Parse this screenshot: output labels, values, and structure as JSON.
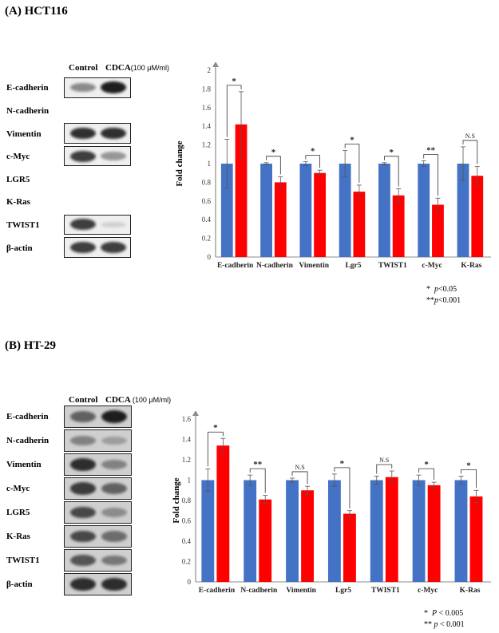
{
  "colors": {
    "control": "#4472C4",
    "cdca": "#FF0000",
    "axis": "#8C8C8C"
  },
  "panelA": {
    "title": "(A)  HCT116",
    "blot": {
      "control_label": "Control",
      "cdca_label": "CDCA",
      "concentration": "(100 μM/ml)",
      "rows": [
        {
          "label": "E-cadherin",
          "has_image": true,
          "ctrl": 0.55,
          "cdca": 0.95
        },
        {
          "label": "N-cadherin",
          "has_image": false
        },
        {
          "label": "Vimentin",
          "has_image": true,
          "ctrl": 0.9,
          "cdca": 0.9
        },
        {
          "label": "c-Myc",
          "has_image": true,
          "ctrl": 0.85,
          "cdca": 0.5
        },
        {
          "label": "LGR5",
          "has_image": false
        },
        {
          "label": "K-Ras",
          "has_image": false
        },
        {
          "label": "TWIST1",
          "has_image": true,
          "ctrl": 0.85,
          "cdca": 0.15
        },
        {
          "label": "β-actin",
          "has_image": true,
          "ctrl": 0.85,
          "cdca": 0.85
        }
      ]
    },
    "chart_data": {
      "type": "bar",
      "ylabel": "Fold change",
      "ylim": [
        0,
        2
      ],
      "yticks": [
        "0",
        "0.2",
        "0.4",
        "0.6",
        "0.8",
        "1",
        "1.2",
        "1.4",
        "1.6",
        "1.8",
        "2"
      ],
      "categories": [
        "E-cadherin",
        "N-cadherin",
        "Vimentin",
        "Lgr5",
        "TWIST1",
        "c-Myc",
        "K-Ras"
      ],
      "series": [
        {
          "name": "Control",
          "values": [
            1,
            1,
            1,
            1,
            1,
            1,
            1
          ],
          "errors": [
            0.26,
            0.01,
            0.02,
            0.14,
            0.01,
            0.03,
            0.18
          ]
        },
        {
          "name": "CDCA",
          "values": [
            1.42,
            0.8,
            0.9,
            0.7,
            0.66,
            0.56,
            0.87
          ],
          "errors": [
            0.35,
            0.06,
            0.03,
            0.07,
            0.07,
            0.07,
            0.1
          ]
        }
      ],
      "significance": [
        "*",
        "*",
        "*",
        "*",
        "*",
        "**",
        "N.S"
      ],
      "legend_position": "bottom",
      "notes": [
        {
          "stars": "*",
          "p": "p",
          "text": "<0.05"
        },
        {
          "stars": "**",
          "p": "p",
          "text": "<0.001"
        }
      ]
    }
  },
  "panelB": {
    "title": "(B)  HT-29",
    "blot": {
      "control_label": "Control",
      "cdca_label": "CDCA",
      "concentration": "(100 μM/ml)",
      "rows": [
        {
          "label": "E-cadherin",
          "has_image": true,
          "ctrl": 0.7,
          "cdca": 0.95
        },
        {
          "label": "N-cadherin",
          "has_image": true,
          "ctrl": 0.55,
          "cdca": 0.4
        },
        {
          "label": "Vimentin",
          "has_image": true,
          "ctrl": 0.9,
          "cdca": 0.55
        },
        {
          "label": "c-Myc",
          "has_image": true,
          "ctrl": 0.85,
          "cdca": 0.7
        },
        {
          "label": "LGR5",
          "has_image": true,
          "ctrl": 0.8,
          "cdca": 0.5
        },
        {
          "label": "K-Ras",
          "has_image": true,
          "ctrl": 0.8,
          "cdca": 0.65
        },
        {
          "label": "TWIST1",
          "has_image": true,
          "ctrl": 0.75,
          "cdca": 0.6
        },
        {
          "label": "β-actin",
          "has_image": true,
          "ctrl": 0.9,
          "cdca": 0.9
        }
      ]
    },
    "chart_data": {
      "type": "bar",
      "ylabel": "Fold change",
      "ylim": [
        0,
        1.6
      ],
      "yticks": [
        "0",
        "0.2",
        "0.4",
        "0.6",
        "0.8",
        "1",
        "1.2",
        "1.4",
        "1.6"
      ],
      "categories": [
        "E-cadherin",
        "N-cadherin",
        "Vimentin",
        "Lgr5",
        "TWIST1",
        "c-Myc",
        "K-Ras"
      ],
      "series": [
        {
          "name": "Control",
          "values": [
            1,
            1,
            1,
            1,
            1,
            1,
            1
          ],
          "errors": [
            0.11,
            0.05,
            0.02,
            0.06,
            0.04,
            0.05,
            0.04
          ]
        },
        {
          "name": "CDCA",
          "values": [
            1.34,
            0.81,
            0.9,
            0.67,
            1.03,
            0.95,
            0.84
          ],
          "errors": [
            0.07,
            0.04,
            0.04,
            0.03,
            0.06,
            0.03,
            0.06
          ]
        }
      ],
      "significance": [
        "*",
        "**",
        "N.S",
        "*",
        "N.S",
        "*",
        "*"
      ],
      "legend_position": "bottom",
      "notes": [
        {
          "stars": "*",
          "p": "P",
          "text": "< 0.005"
        },
        {
          "stars": "**",
          "p": "p",
          "text": "< 0.001"
        }
      ]
    }
  }
}
